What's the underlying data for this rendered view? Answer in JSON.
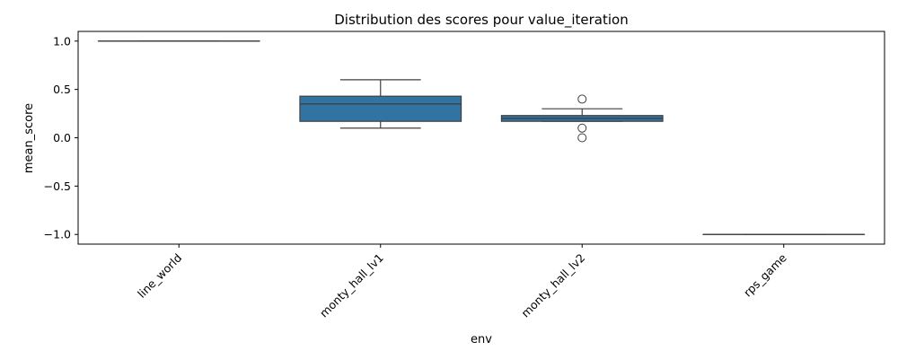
{
  "chart_data": {
    "type": "box",
    "title": "Distribution des scores pour value_iteration",
    "xlabel": "env",
    "ylabel": "mean_score",
    "ylim": [
      -1.1,
      1.1
    ],
    "yticks": [
      "1.0",
      "0.5",
      "0.0",
      "−0.5",
      "−1.0"
    ],
    "ytick_values": [
      1.0,
      0.5,
      0.0,
      -0.5,
      -1.0
    ],
    "categories": [
      "line_world",
      "monty_hall_lv1",
      "monty_hall_lv2",
      "rps_game"
    ],
    "boxes": [
      {
        "q1": 1.0,
        "median": 1.0,
        "q3": 1.0,
        "whisker_low": 1.0,
        "whisker_high": 1.0,
        "outliers": []
      },
      {
        "q1": 0.17,
        "median": 0.35,
        "q3": 0.43,
        "whisker_low": 0.1,
        "whisker_high": 0.6,
        "outliers": []
      },
      {
        "q1": 0.17,
        "median": 0.2,
        "q3": 0.23,
        "whisker_low": 0.17,
        "whisker_high": 0.3,
        "outliers": [
          0.4,
          0.1,
          0.0
        ]
      },
      {
        "q1": -1.0,
        "median": -1.0,
        "q3": -1.0,
        "whisker_low": -1.0,
        "whisker_high": -1.0,
        "outliers": []
      }
    ],
    "box_color": "#3274a1",
    "line_color": "#3f3f3f",
    "grid": false,
    "legend": "none"
  }
}
